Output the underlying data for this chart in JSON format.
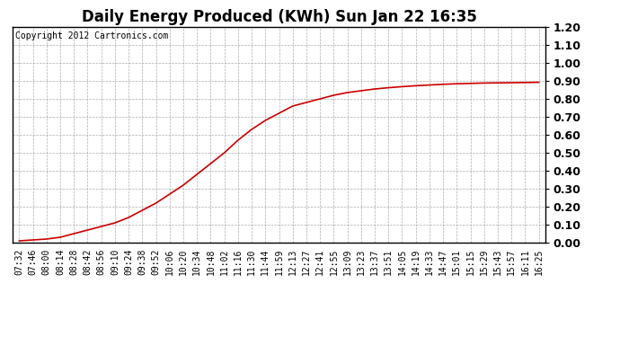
{
  "title": "Daily Energy Produced (KWh) Sun Jan 22 16:35",
  "copyright_text": "Copyright 2012 Cartronics.com",
  "line_color": "#cc0000",
  "background_color": "#ffffff",
  "plot_bg_color": "#ffffff",
  "grid_color": "#999999",
  "ylim": [
    0.0,
    1.2
  ],
  "yticks": [
    0.0,
    0.1,
    0.2,
    0.3,
    0.4,
    0.5,
    0.6,
    0.7,
    0.8,
    0.9,
    1.0,
    1.1,
    1.2
  ],
  "x_labels": [
    "07:32",
    "07:46",
    "08:00",
    "08:14",
    "08:28",
    "08:42",
    "08:56",
    "09:10",
    "09:24",
    "09:38",
    "09:52",
    "10:06",
    "10:20",
    "10:34",
    "10:48",
    "11:02",
    "11:16",
    "11:30",
    "11:44",
    "11:59",
    "12:13",
    "12:27",
    "12:41",
    "12:55",
    "13:09",
    "13:23",
    "13:37",
    "13:51",
    "14:05",
    "14:19",
    "14:33",
    "14:47",
    "15:01",
    "15:15",
    "15:29",
    "15:43",
    "15:57",
    "16:11",
    "16:25"
  ],
  "y_values": [
    0.01,
    0.015,
    0.02,
    0.03,
    0.05,
    0.07,
    0.09,
    0.11,
    0.14,
    0.18,
    0.22,
    0.27,
    0.32,
    0.38,
    0.44,
    0.5,
    0.57,
    0.63,
    0.68,
    0.72,
    0.76,
    0.78,
    0.8,
    0.82,
    0.835,
    0.845,
    0.855,
    0.862,
    0.868,
    0.873,
    0.877,
    0.881,
    0.884,
    0.886,
    0.888,
    0.889,
    0.89,
    0.891,
    0.892
  ],
  "title_fontsize": 12,
  "copyright_fontsize": 7,
  "tick_fontsize": 7,
  "ytick_fontsize": 9,
  "line_width": 1.2,
  "figwidth": 6.9,
  "figheight": 3.75,
  "dpi": 100
}
